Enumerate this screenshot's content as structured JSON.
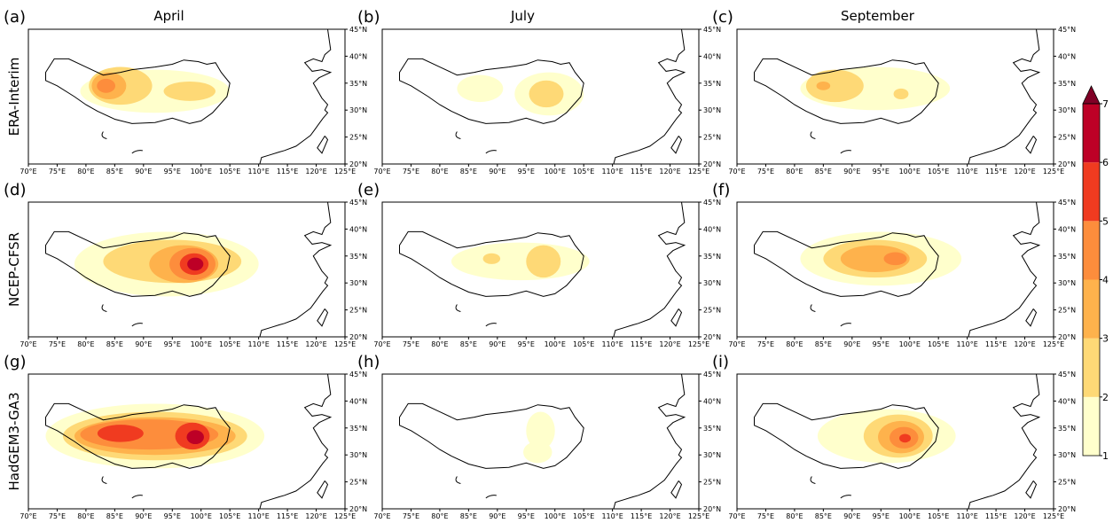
{
  "columns": [
    "April",
    "July",
    "September"
  ],
  "rows": [
    "ERA-Interim",
    "NCEP-CFSR",
    "HadGEM3-GA3"
  ],
  "panels": [
    "(a)",
    "(b)",
    "(c)",
    "(d)",
    "(e)",
    "(f)",
    "(g)",
    "(h)",
    "(i)"
  ],
  "x_ticks": [
    {
      "value": 70,
      "label": "70°E"
    },
    {
      "value": 75,
      "label": "75°E"
    },
    {
      "value": 80,
      "label": "80°E"
    },
    {
      "value": 85,
      "label": "85°E"
    },
    {
      "value": 90,
      "label": "90°E"
    },
    {
      "value": 95,
      "label": "95°E"
    },
    {
      "value": 100,
      "label": "100°E"
    },
    {
      "value": 105,
      "label": "105°E"
    },
    {
      "value": 110,
      "label": "110°E"
    },
    {
      "value": 115,
      "label": "115°E"
    },
    {
      "value": 120,
      "label": "120°E"
    },
    {
      "value": 125,
      "label": "125°E"
    }
  ],
  "y_ticks": [
    {
      "value": 20,
      "label": "20°N"
    },
    {
      "value": 25,
      "label": "25°N"
    },
    {
      "value": 30,
      "label": "30°N"
    },
    {
      "value": 35,
      "label": "35°N"
    },
    {
      "value": 40,
      "label": "40°N"
    },
    {
      "value": 45,
      "label": "45°N"
    }
  ],
  "colorbar": {
    "ticks": [
      1,
      2,
      3,
      4,
      5,
      6,
      7
    ],
    "colors": [
      "#ffffcc",
      "#fed976",
      "#feb24c",
      "#fd8d3c",
      "#f03b20",
      "#bd0026"
    ],
    "extend_color": "#800026"
  }
}
